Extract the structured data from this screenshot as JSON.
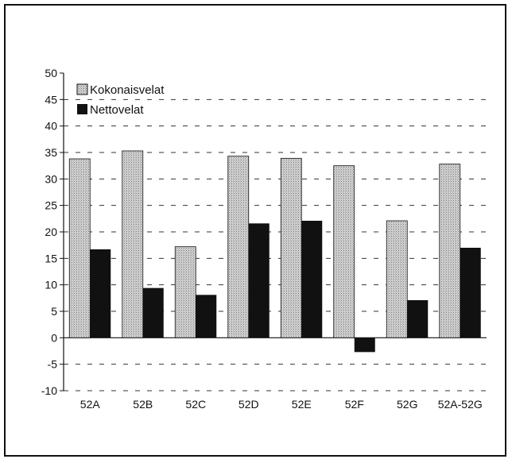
{
  "chart_data": {
    "type": "bar",
    "categories": [
      "52A",
      "52B",
      "52C",
      "52D",
      "52E",
      "52F",
      "52G",
      "52A-52G"
    ],
    "series": [
      {
        "name": "Kokonaisvelat",
        "values": [
          33.8,
          35.3,
          17.2,
          34.3,
          33.9,
          32.5,
          22.1,
          32.8
        ],
        "color": "#c4c4c4",
        "pattern": "stippled"
      },
      {
        "name": "Nettovelat",
        "values": [
          16.7,
          9.4,
          8.1,
          21.6,
          22.1,
          -2.7,
          7.1,
          17.0
        ],
        "color": "#111111"
      }
    ],
    "yticks": [
      50,
      45,
      40,
      35,
      30,
      25,
      20,
      15,
      10,
      5,
      0,
      -5,
      -10
    ],
    "ylim": [
      -10,
      50
    ],
    "grid": "dashed horizontal",
    "legend_position": "top-left",
    "title": "",
    "xlabel": "",
    "ylabel": ""
  }
}
